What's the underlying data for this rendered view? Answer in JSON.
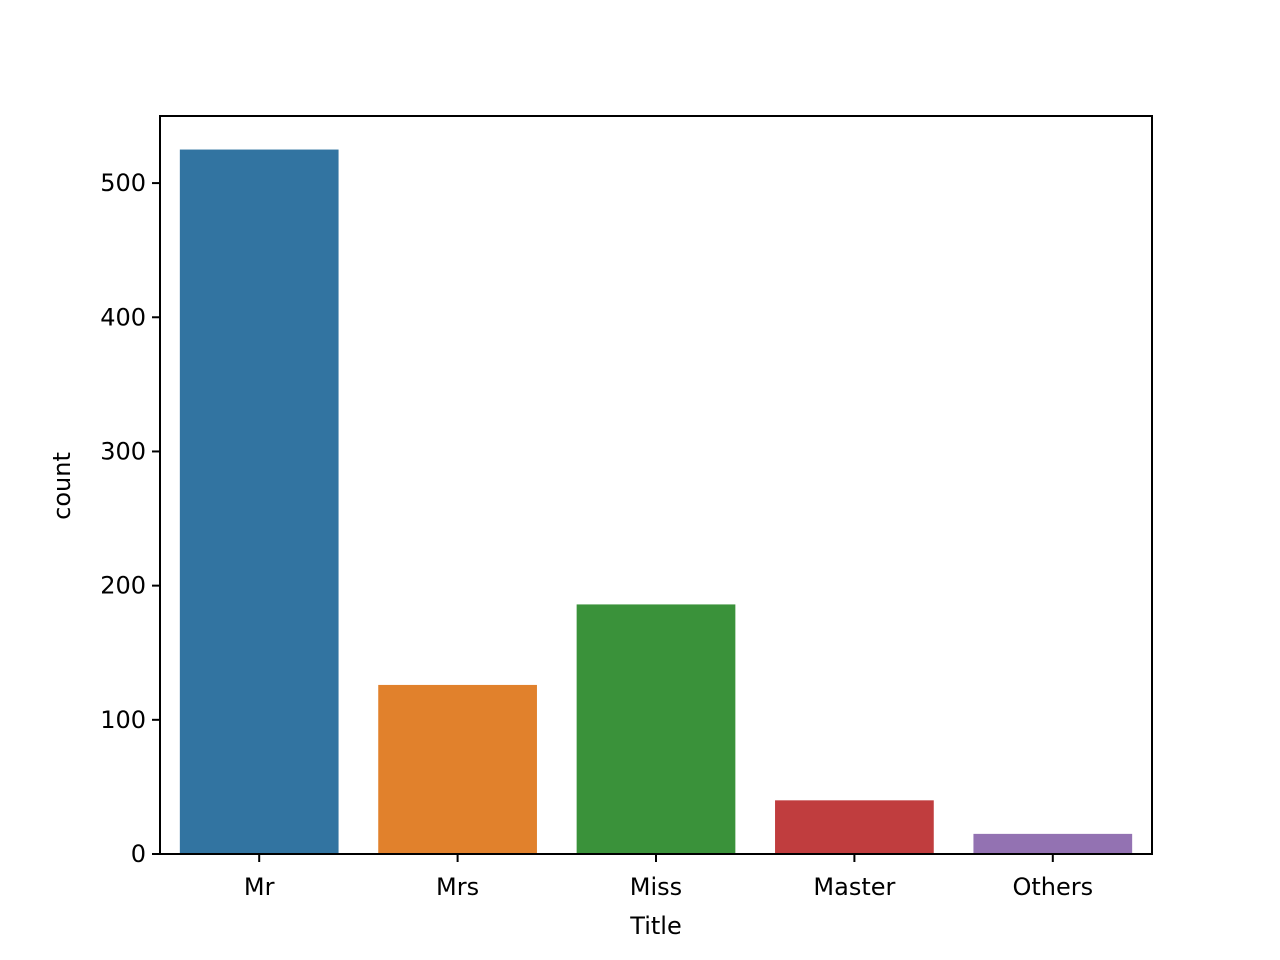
{
  "chart_data": {
    "type": "bar",
    "categories": [
      "Mr",
      "Mrs",
      "Miss",
      "Master",
      "Others"
    ],
    "values": [
      525,
      126,
      186,
      40,
      15
    ],
    "colors": [
      "#3274a1",
      "#e1812c",
      "#3a923a",
      "#c03d3e",
      "#9372b2"
    ],
    "xlabel": "Title",
    "ylabel": "count",
    "ylim": [
      0,
      550
    ],
    "yticks": [
      0,
      100,
      200,
      300,
      400,
      500
    ],
    "grid": false,
    "legend": "none"
  }
}
